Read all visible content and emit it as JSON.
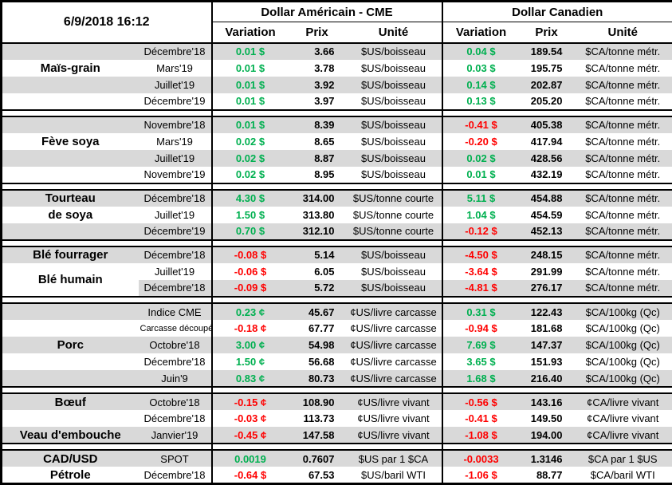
{
  "colors": {
    "positive": "#00b050",
    "negative": "#ff0000",
    "row_shade": "#d9d9d9"
  },
  "header": {
    "timestamp": "6/9/2018 16:12",
    "us_title": "Dollar Américain - CME",
    "ca_title": "Dollar Canadien",
    "columns": {
      "variation": "Variation",
      "prix": "Prix",
      "unite": "Unité"
    }
  },
  "sections": [
    {
      "labels": [
        {
          "text": "Maïs-grain",
          "row": 1
        }
      ],
      "rows": [
        {
          "contract": "Décembre'18",
          "us": {
            "variation": "0.01 $",
            "prix": "3.66",
            "unite": "$US/boisseau"
          },
          "ca": {
            "variation": "0.04 $",
            "prix": "189.54",
            "unite": "$CA/tonne métr."
          }
        },
        {
          "contract": "Mars'19",
          "us": {
            "variation": "0.01 $",
            "prix": "3.78",
            "unite": "$US/boisseau"
          },
          "ca": {
            "variation": "0.03 $",
            "prix": "195.75",
            "unite": "$CA/tonne métr."
          }
        },
        {
          "contract": "Juillet'19",
          "us": {
            "variation": "0.01 $",
            "prix": "3.92",
            "unite": "$US/boisseau"
          },
          "ca": {
            "variation": "0.14 $",
            "prix": "202.87",
            "unite": "$CA/tonne métr."
          }
        },
        {
          "contract": "Décembre'19",
          "us": {
            "variation": "0.01 $",
            "prix": "3.97",
            "unite": "$US/boisseau"
          },
          "ca": {
            "variation": "0.13 $",
            "prix": "205.20",
            "unite": "$CA/tonne métr."
          }
        }
      ]
    },
    {
      "labels": [
        {
          "text": "Fève soya",
          "row": 1
        }
      ],
      "rows": [
        {
          "contract": "Novembre'18",
          "us": {
            "variation": "0.01 $",
            "prix": "8.39",
            "unite": "$US/boisseau"
          },
          "ca": {
            "variation": "-0.41 $",
            "prix": "405.38",
            "unite": "$CA/tonne métr."
          }
        },
        {
          "contract": "Mars'19",
          "us": {
            "variation": "0.02 $",
            "prix": "8.65",
            "unite": "$US/boisseau"
          },
          "ca": {
            "variation": "-0.20 $",
            "prix": "417.94",
            "unite": "$CA/tonne métr."
          }
        },
        {
          "contract": "Juillet'19",
          "us": {
            "variation": "0.02 $",
            "prix": "8.87",
            "unite": "$US/boisseau"
          },
          "ca": {
            "variation": "0.02 $",
            "prix": "428.56",
            "unite": "$CA/tonne métr."
          }
        },
        {
          "contract": "Novembre'19",
          "us": {
            "variation": "0.02 $",
            "prix": "8.95",
            "unite": "$US/boisseau"
          },
          "ca": {
            "variation": "0.01 $",
            "prix": "432.19",
            "unite": "$CA/tonne métr."
          }
        }
      ]
    },
    {
      "labels": [
        {
          "text": "Tourteau",
          "row": 0
        },
        {
          "text": "de soya",
          "row": 1
        }
      ],
      "rows": [
        {
          "contract": "Décembre'18",
          "us": {
            "variation": "4.30 $",
            "prix": "314.00",
            "unite": "$US/tonne courte"
          },
          "ca": {
            "variation": "5.11 $",
            "prix": "454.88",
            "unite": "$CA/tonne métr."
          }
        },
        {
          "contract": "Juillet'19",
          "us": {
            "variation": "1.50 $",
            "prix": "313.80",
            "unite": "$US/tonne courte"
          },
          "ca": {
            "variation": "1.04 $",
            "prix": "454.59",
            "unite": "$CA/tonne métr."
          }
        },
        {
          "contract": "Décembre'19",
          "us": {
            "variation": "0.70 $",
            "prix": "312.10",
            "unite": "$US/tonne courte"
          },
          "ca": {
            "variation": "-0.12 $",
            "prix": "452.13",
            "unite": "$CA/tonne métr."
          }
        }
      ]
    },
    {
      "labels": [
        {
          "text": "Blé fourrager",
          "row": 0
        },
        {
          "text": "Blé humain",
          "row": 1,
          "rowspan": 2
        }
      ],
      "rows": [
        {
          "contract": "Décembre'18",
          "us": {
            "variation": "-0.08 $",
            "prix": "5.14",
            "unite": "$US/boisseau"
          },
          "ca": {
            "variation": "-4.50 $",
            "prix": "248.15",
            "unite": "$CA/tonne métr."
          }
        },
        {
          "contract": "Juillet'19",
          "us": {
            "variation": "-0.06 $",
            "prix": "6.05",
            "unite": "$US/boisseau"
          },
          "ca": {
            "variation": "-3.64 $",
            "prix": "291.99",
            "unite": "$CA/tonne métr."
          }
        },
        {
          "contract": "Décembre'18",
          "us": {
            "variation": "-0.09 $",
            "prix": "5.72",
            "unite": "$US/boisseau"
          },
          "ca": {
            "variation": "-4.81 $",
            "prix": "276.17",
            "unite": "$CA/tonne métr."
          }
        }
      ]
    },
    {
      "labels": [
        {
          "text": "Porc",
          "row": 2
        }
      ],
      "rows": [
        {
          "contract": "Indice CME",
          "us": {
            "variation": "0.23 ¢",
            "prix": "45.67",
            "unite": "¢US/livre carcasse"
          },
          "ca": {
            "variation": "0.31 $",
            "prix": "122.43",
            "unite": "$CA/100kg (Qc)"
          }
        },
        {
          "contract": "Carcasse découpée",
          "small": true,
          "us": {
            "variation": "-0.18 ¢",
            "prix": "67.77",
            "unite": "¢US/livre carcasse"
          },
          "ca": {
            "variation": "-0.94 $",
            "prix": "181.68",
            "unite": "$CA/100kg (Qc)"
          }
        },
        {
          "contract": "Octobre'18",
          "us": {
            "variation": "3.00 ¢",
            "prix": "54.98",
            "unite": "¢US/livre carcasse"
          },
          "ca": {
            "variation": "7.69 $",
            "prix": "147.37",
            "unite": "$CA/100kg (Qc)"
          }
        },
        {
          "contract": "Décembre'18",
          "us": {
            "variation": "1.50 ¢",
            "prix": "56.68",
            "unite": "¢US/livre carcasse"
          },
          "ca": {
            "variation": "3.65 $",
            "prix": "151.93",
            "unite": "$CA/100kg (Qc)"
          }
        },
        {
          "contract": "Juin'9",
          "us": {
            "variation": "0.83 ¢",
            "prix": "80.73",
            "unite": "¢US/livre carcasse"
          },
          "ca": {
            "variation": "1.68 $",
            "prix": "216.40",
            "unite": "$CA/100kg (Qc)"
          }
        }
      ]
    },
    {
      "labels": [
        {
          "text": "Bœuf",
          "row": 0
        },
        {
          "text": "Veau d'embouche",
          "row": 2
        }
      ],
      "rows": [
        {
          "contract": "Octobre'18",
          "us": {
            "variation": "-0.15 ¢",
            "prix": "108.90",
            "unite": "¢US/livre vivant"
          },
          "ca": {
            "variation": "-0.56 $",
            "prix": "143.16",
            "unite": "¢CA/livre vivant"
          }
        },
        {
          "contract": "Décembre'18",
          "us": {
            "variation": "-0.03 ¢",
            "prix": "113.73",
            "unite": "¢US/livre vivant"
          },
          "ca": {
            "variation": "-0.41 $",
            "prix": "149.50",
            "unite": "¢CA/livre vivant"
          }
        },
        {
          "contract": "Janvier'19",
          "us": {
            "variation": "-0.45 ¢",
            "prix": "147.58",
            "unite": "¢US/livre vivant"
          },
          "ca": {
            "variation": "-1.08 $",
            "prix": "194.00",
            "unite": "¢CA/livre vivant"
          }
        }
      ]
    },
    {
      "labels": [
        {
          "text": "CAD/USD",
          "row": 0
        },
        {
          "text": "Pétrole",
          "row": 1
        }
      ],
      "rows": [
        {
          "contract": "SPOT",
          "us": {
            "variation": "0.0019",
            "prix": "0.7607",
            "unite": "$US par 1 $CA"
          },
          "ca": {
            "variation": "-0.0033",
            "prix": "1.3146",
            "unite": "$CA par 1 $US"
          }
        },
        {
          "contract": "Décembre'18",
          "us": {
            "variation": "-0.64 $",
            "prix": "67.53",
            "unite": "$US/baril WTI"
          },
          "ca": {
            "variation": "-1.06 $",
            "prix": "88.77",
            "unite": "$CA/baril WTI"
          }
        }
      ]
    }
  ]
}
